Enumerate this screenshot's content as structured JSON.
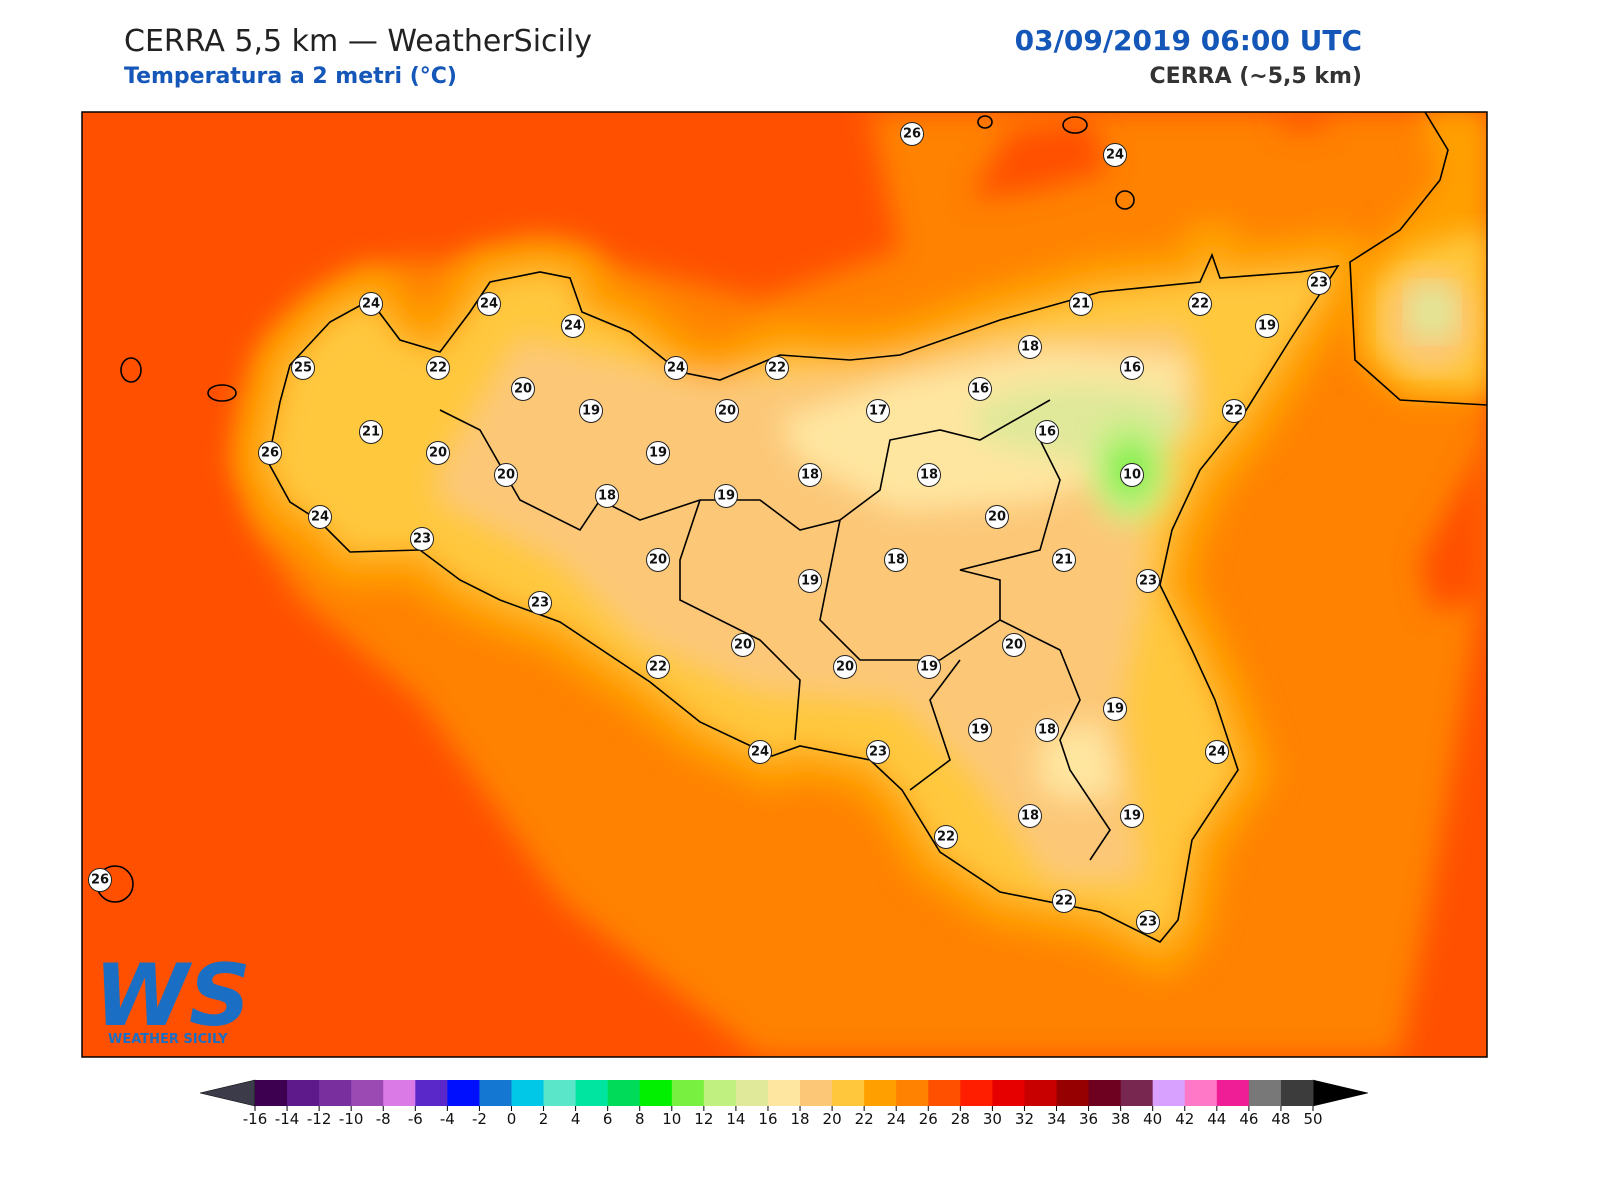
{
  "header": {
    "title": "CERRA 5,5 km — WeatherSicily",
    "subtitle": "Temperatura a 2 metri (°C)",
    "datetime": "03/09/2019 06:00 UTC",
    "model": "CERRA (~5,5 km)"
  },
  "logo": {
    "letters": "WS",
    "name": "WEATHER SICILY"
  },
  "map": {
    "stations": [
      {
        "value": 26
      },
      {
        "value": 24
      },
      {
        "value": 24
      },
      {
        "value": 24
      },
      {
        "value": 24
      },
      {
        "value": 25
      },
      {
        "value": 22
      },
      {
        "value": 20
      },
      {
        "value": 19
      },
      {
        "value": 24
      },
      {
        "value": 22
      },
      {
        "value": 20
      },
      {
        "value": 21
      },
      {
        "value": 22
      },
      {
        "value": 23
      },
      {
        "value": 19
      },
      {
        "value": 18
      },
      {
        "value": 16
      },
      {
        "value": 16
      },
      {
        "value": 17
      },
      {
        "value": 22
      },
      {
        "value": 21
      },
      {
        "value": 20
      },
      {
        "value": 26
      },
      {
        "value": 19
      },
      {
        "value": 16
      },
      {
        "value": 20
      },
      {
        "value": 18
      },
      {
        "value": 18
      },
      {
        "value": 10
      },
      {
        "value": 18
      },
      {
        "value": 19
      },
      {
        "value": 24
      },
      {
        "value": 20
      },
      {
        "value": 23
      },
      {
        "value": 20
      },
      {
        "value": 18
      },
      {
        "value": 21
      },
      {
        "value": 19
      },
      {
        "value": 23
      },
      {
        "value": 23
      },
      {
        "value": 20
      },
      {
        "value": 20
      },
      {
        "value": 22
      },
      {
        "value": 20
      },
      {
        "value": 19
      },
      {
        "value": 19
      },
      {
        "value": 19
      },
      {
        "value": 18
      },
      {
        "value": 24
      },
      {
        "value": 23
      },
      {
        "value": 24
      },
      {
        "value": 18
      },
      {
        "value": 19
      },
      {
        "value": 22
      },
      {
        "value": 26
      },
      {
        "value": 22
      },
      {
        "value": 23
      }
    ]
  },
  "colorbar": {
    "ticks": [
      -16,
      -14,
      -12,
      -10,
      -8,
      -6,
      -4,
      -2,
      0,
      2,
      4,
      6,
      8,
      10,
      12,
      14,
      16,
      18,
      20,
      22,
      24,
      26,
      28,
      30,
      32,
      34,
      36,
      38,
      40,
      42,
      44,
      46,
      48,
      50
    ],
    "colors": [
      "#3d0050",
      "#5e1a8a",
      "#7a2f9e",
      "#9b4ab4",
      "#d97ae6",
      "#5a28c8",
      "#0010ff",
      "#1478d2",
      "#00c8e6",
      "#5ae6c8",
      "#00e6a0",
      "#00dc5a",
      "#00f000",
      "#78f040",
      "#c0f080",
      "#e0e89a",
      "#ffe6a0",
      "#fcc878",
      "#ffc83c",
      "#ffa000",
      "#ff8200",
      "#ff5000",
      "#ff1e00",
      "#e60000",
      "#c80000",
      "#960000",
      "#6e0020",
      "#782850",
      "#d8a0ff",
      "#ff78c8",
      "#f01e96",
      "#787878",
      "#3c3c3c"
    ],
    "extend_colors": [
      "#3b3b4a",
      "#000000"
    ]
  }
}
